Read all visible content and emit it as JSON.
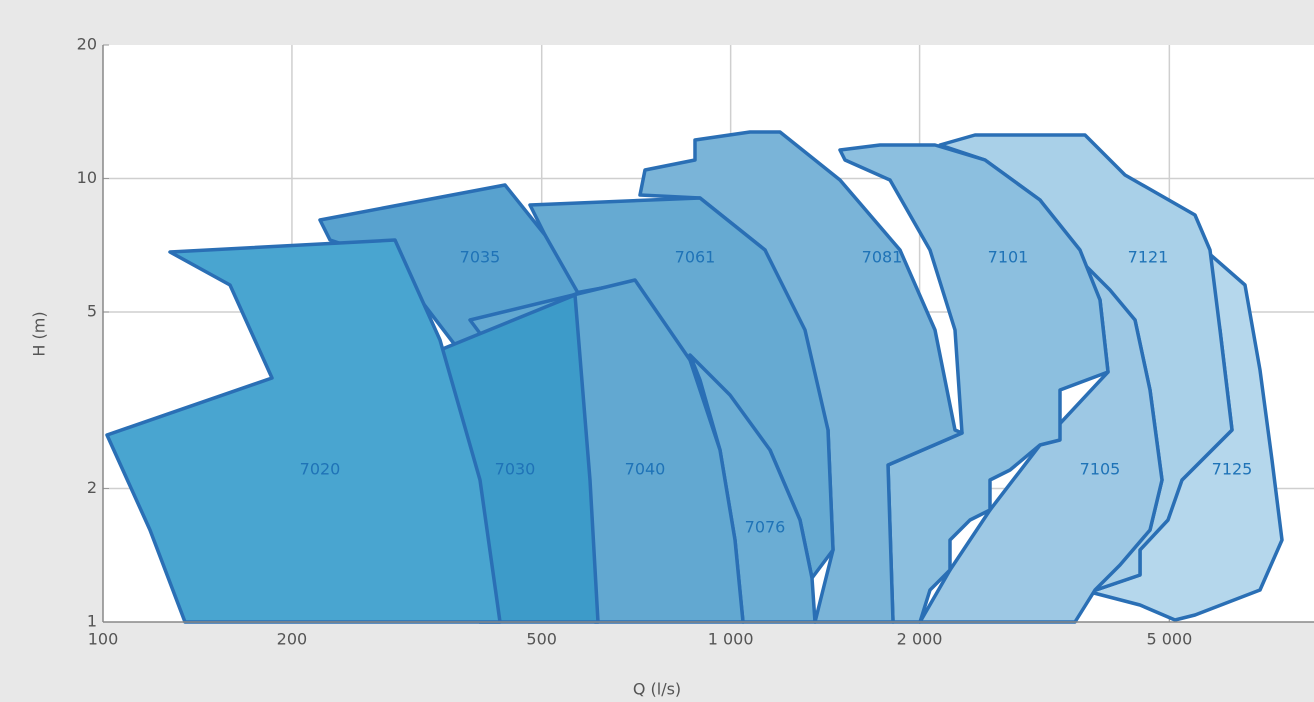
{
  "chart_data": {
    "type": "region",
    "x_label": "Q (l/s)",
    "y_label": "H (m)",
    "log_x": true,
    "log_y": true,
    "grid": true,
    "xlim": [
      100,
      8500
    ],
    "ylim": [
      1,
      20
    ],
    "xticks": [
      100,
      200,
      500,
      {
        "value": 1000,
        "label": "1 000"
      },
      {
        "value": 2000,
        "label": "2 000"
      },
      {
        "value": 5000,
        "label": "5 000"
      }
    ],
    "yticks": [
      1,
      2,
      5,
      10,
      20
    ],
    "regions": [
      {
        "name": "7125",
        "color": "#b5d7ec"
      },
      {
        "name": "7121",
        "color": "#a9d0e8"
      },
      {
        "name": "7105",
        "color": "#9dc8e4"
      },
      {
        "name": "7101",
        "color": "#8cbfdf"
      },
      {
        "name": "7081",
        "color": "#7ab4d8"
      },
      {
        "name": "7061",
        "color": "#66aad2"
      },
      {
        "name": "7076",
        "color": "#6badd4"
      },
      {
        "name": "7035",
        "color": "#58a2cf"
      },
      {
        "name": "7040",
        "color": "#62a8d1"
      },
      {
        "name": "7030",
        "color": "#3d9bc9"
      },
      {
        "name": "7020",
        "color": "#49a5d0"
      }
    ]
  }
}
